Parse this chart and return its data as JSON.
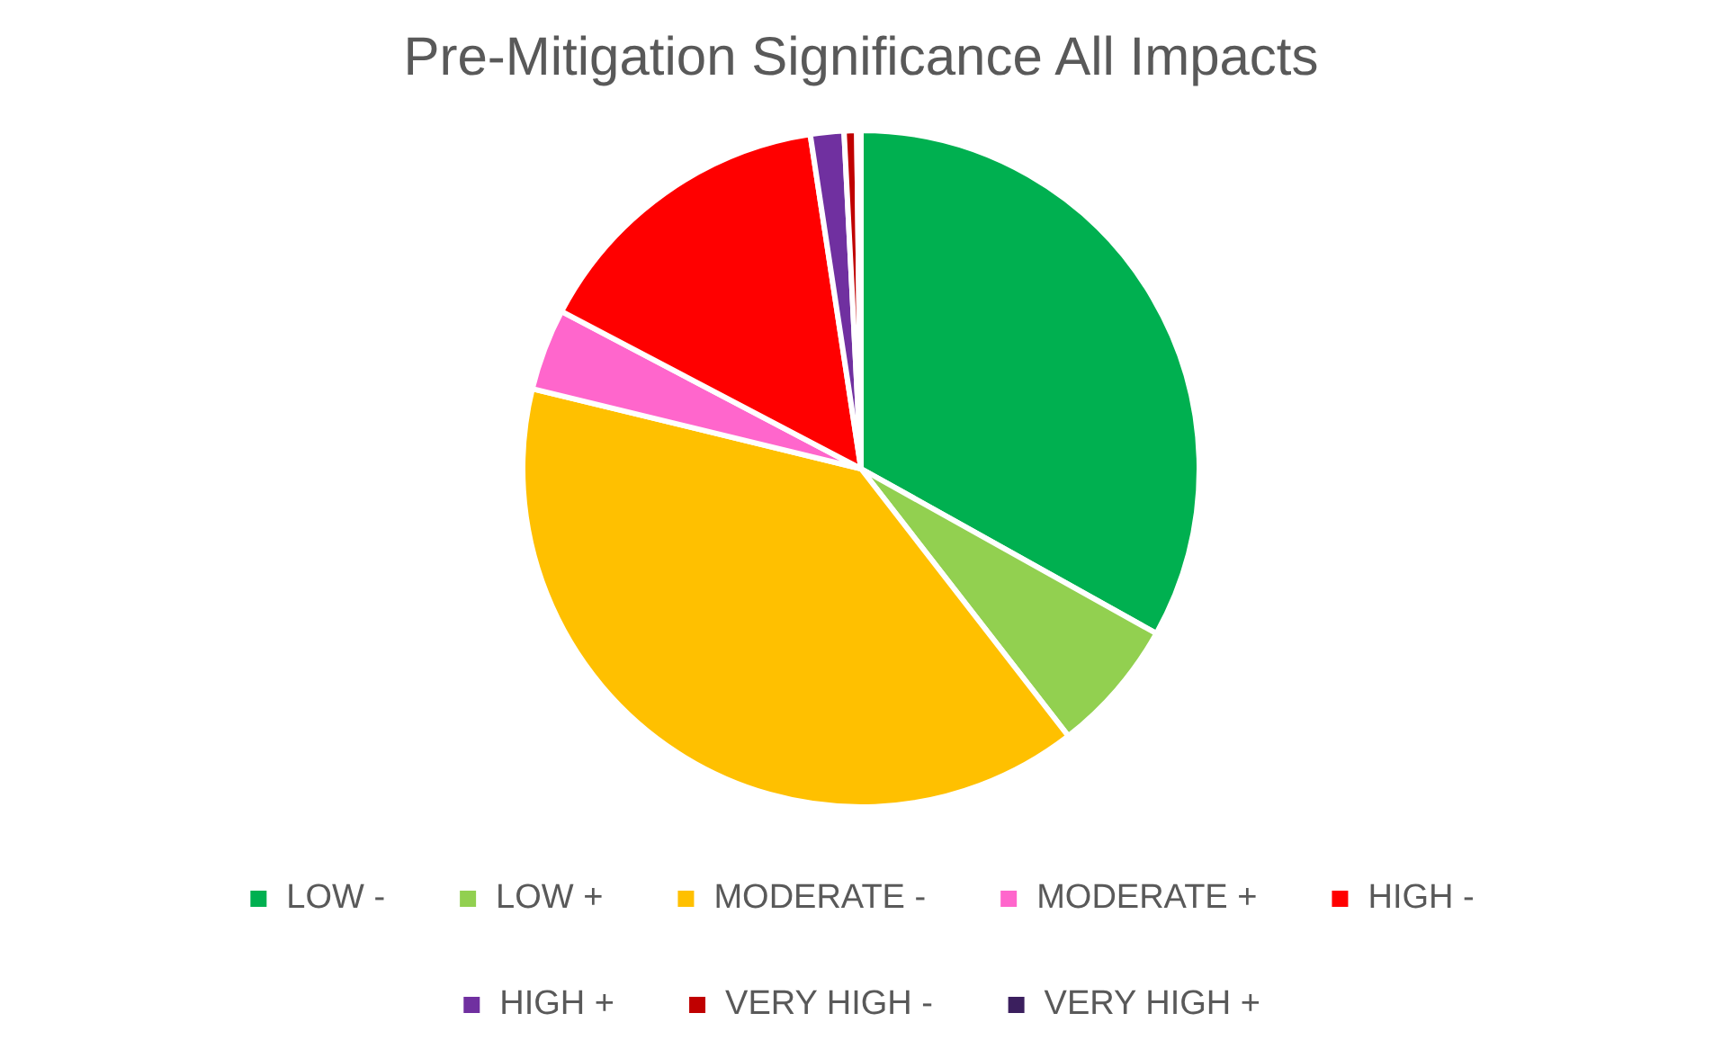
{
  "chart_data": {
    "type": "pie",
    "title": "Pre-Mitigation Significance All Impacts",
    "categories": [
      "LOW -",
      "LOW +",
      "MODERATE -",
      "MODERATE +",
      "HIGH -",
      "HIGH +",
      "VERY HIGH -",
      "VERY HIGH +"
    ],
    "values": [
      33.1,
      6.4,
      39.3,
      3.9,
      14.9,
      1.6,
      0.6,
      0.2
    ],
    "colors": [
      "#00b050",
      "#92d050",
      "#ffc000",
      "#ff66cc",
      "#ff0000",
      "#7030a0",
      "#c00000",
      "#3b1f5e"
    ],
    "legend": "bottom"
  }
}
